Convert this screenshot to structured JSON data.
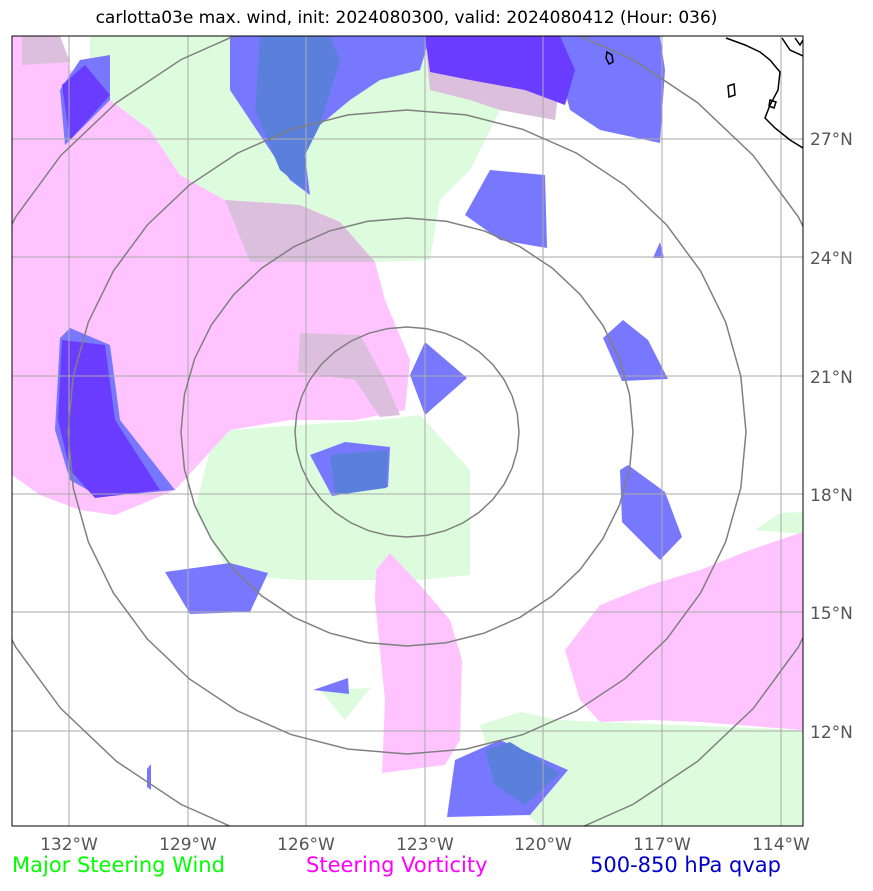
{
  "title": "carlotta03e max. wind, init: 2024080300, valid: 2024080412 (Hour: 036)",
  "longitude_labels": [
    "132°W",
    "129°W",
    "126°W",
    "123°W",
    "120°W",
    "117°W",
    "114°W"
  ],
  "latitude_labels": [
    "27°N",
    "24°N",
    "21°N",
    "18°N",
    "15°N",
    "12°N"
  ],
  "legend": [
    {
      "label": "Major Steering Wind",
      "color": "#00ff00"
    },
    {
      "label": "Steering Vorticity",
      "color": "#ff00ff"
    },
    {
      "label": "500-850 hPa qvap",
      "color": "#0000cc"
    }
  ],
  "colors": {
    "wind_fill": "#ddfcdd",
    "vorticity_fill": "#ffc4ff",
    "overlap_fill": "#dcbfdc",
    "qvap_fill": "#7878ff",
    "qvap_dark_fill": "#6a3cff",
    "qvap_mix_fill": "#5a80dc",
    "grid": "#aaaaaa",
    "range_rings": "#808080",
    "coastline": "#000000"
  }
}
